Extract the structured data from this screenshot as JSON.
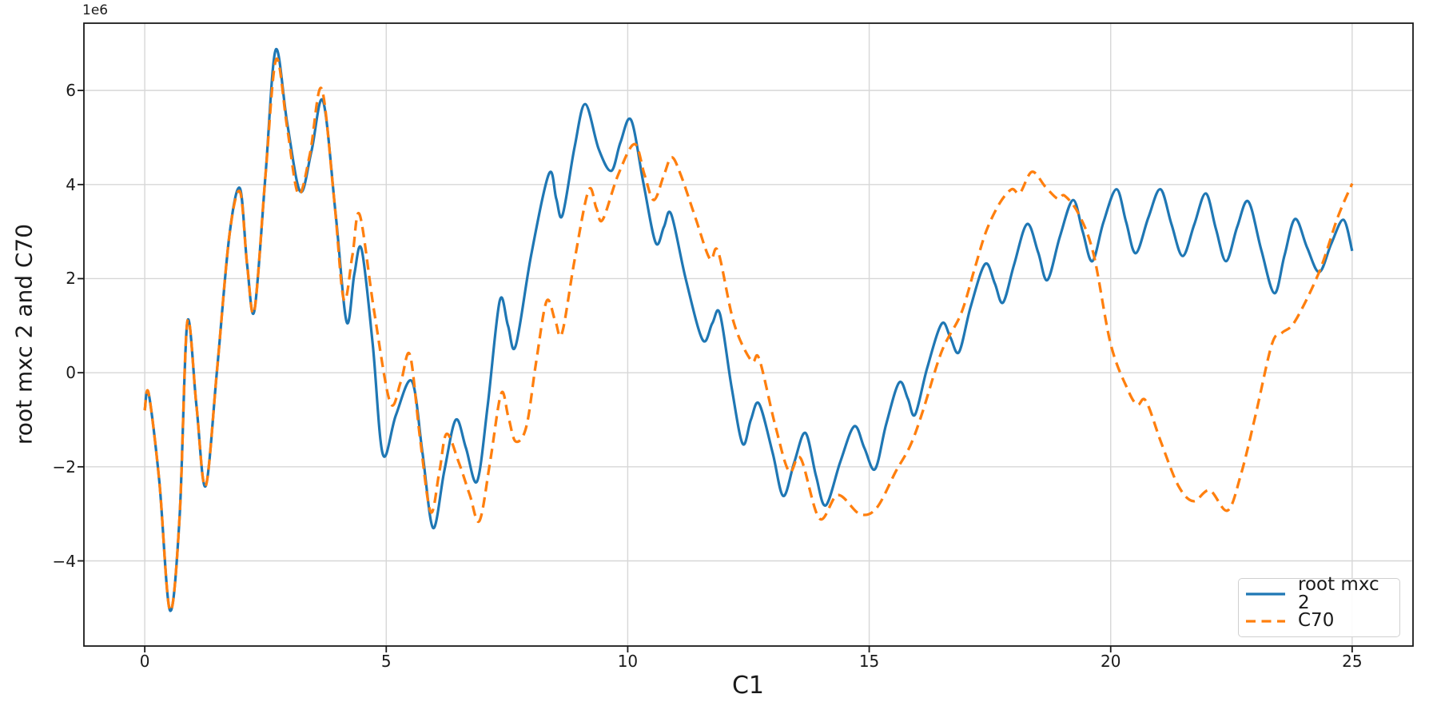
{
  "axes": {
    "offset_text": "1e6",
    "xlabel": "C1",
    "ylabel": "root mxc 2 and C70",
    "x_ticks": [
      {
        "value": 0,
        "label": "0"
      },
      {
        "value": 5,
        "label": "5"
      },
      {
        "value": 10,
        "label": "10"
      },
      {
        "value": 15,
        "label": "15"
      },
      {
        "value": 20,
        "label": "20"
      },
      {
        "value": 25,
        "label": "25"
      }
    ],
    "y_ticks": [
      {
        "value": 6,
        "label": "6"
      },
      {
        "value": 4,
        "label": "4"
      },
      {
        "value": 2,
        "label": "2"
      },
      {
        "value": 0,
        "label": "0"
      },
      {
        "value": -2,
        "label": "−2"
      },
      {
        "value": -4,
        "label": "−4"
      }
    ],
    "xlim": [
      -1.26,
      26.26
    ],
    "ylim": [
      -5.81,
      7.43
    ],
    "grid": true,
    "grid_color": "#d7d7d7",
    "spine_color": "#1a1a1a"
  },
  "legend": {
    "position": "lower right",
    "entries": [
      {
        "label": "root mxc 2",
        "color": "#1f77b4",
        "linestyle": "solid"
      },
      {
        "label": "C70",
        "color": "#ff7f0e",
        "linestyle": "dashed"
      }
    ]
  },
  "chart_data": {
    "type": "line",
    "title": "",
    "xlabel": "C1",
    "ylabel": "root mxc 2 and C70",
    "y_units": "1e6 (axis offset text; y values below are in millions)",
    "xlim": [
      -1.26,
      26.26
    ],
    "ylim": [
      -5.81,
      7.43
    ],
    "grid": true,
    "legend_position": "lower right",
    "series": [
      {
        "name": "root mxc 2",
        "color": "#1f77b4",
        "linestyle": "solid",
        "linewidth": 3.2,
        "x": [
          0,
          0.08,
          0.3,
          0.52,
          0.72,
          0.88,
          1.07,
          1.26,
          1.5,
          1.75,
          1.97,
          2.12,
          2.27,
          2.5,
          2.71,
          2.95,
          3.22,
          3.45,
          3.69,
          3.95,
          4.18,
          4.34,
          4.49,
          4.72,
          4.93,
          5.2,
          5.53,
          5.75,
          5.97,
          6.2,
          6.44,
          6.65,
          6.88,
          7.1,
          7.35,
          7.52,
          7.68,
          8.0,
          8.37,
          8.52,
          8.65,
          8.9,
          9.12,
          9.4,
          9.66,
          9.85,
          10.07,
          10.33,
          10.58,
          10.75,
          10.9,
          11.2,
          11.55,
          11.75,
          11.91,
          12.15,
          12.38,
          12.55,
          12.72,
          13.0,
          13.22,
          13.45,
          13.68,
          13.9,
          14.1,
          14.4,
          14.69,
          14.9,
          15.12,
          15.35,
          15.62,
          15.8,
          15.95,
          16.2,
          16.5,
          16.68,
          16.86,
          17.1,
          17.4,
          17.6,
          17.77,
          18.0,
          18.27,
          18.5,
          18.69,
          18.95,
          19.22,
          19.42,
          19.62,
          19.85,
          20.12,
          20.32,
          20.52,
          20.78,
          21.03,
          21.26,
          21.49,
          21.73,
          21.97,
          22.18,
          22.39,
          22.62,
          22.85,
          23.12,
          23.39,
          23.6,
          23.82,
          24.07,
          24.32,
          24.57,
          24.82,
          25
        ],
        "y": [
          -0.8,
          -0.44,
          -2.3,
          -5.05,
          -3.1,
          1.07,
          -0.7,
          -2.41,
          0.1,
          2.9,
          3.92,
          2.3,
          1.32,
          4.2,
          6.86,
          5.3,
          3.85,
          4.7,
          5.78,
          3.4,
          1.08,
          2.1,
          2.62,
          0.6,
          -1.74,
          -0.9,
          -0.18,
          -1.7,
          -3.3,
          -2.1,
          -1.0,
          -1.6,
          -2.31,
          -0.7,
          1.53,
          1.0,
          0.57,
          2.5,
          4.23,
          3.7,
          3.35,
          4.8,
          5.71,
          4.75,
          4.29,
          4.9,
          5.37,
          4.0,
          2.76,
          3.1,
          3.37,
          2.0,
          0.7,
          1.05,
          1.25,
          -0.3,
          -1.51,
          -1.0,
          -0.66,
          -1.7,
          -2.62,
          -1.9,
          -1.28,
          -2.2,
          -2.82,
          -1.9,
          -1.14,
          -1.6,
          -2.05,
          -1.1,
          -0.21,
          -0.55,
          -0.89,
          0.1,
          1.04,
          0.75,
          0.44,
          1.4,
          2.31,
          1.9,
          1.49,
          2.3,
          3.16,
          2.55,
          1.97,
          2.9,
          3.67,
          3.0,
          2.37,
          3.2,
          3.9,
          3.2,
          2.54,
          3.3,
          3.9,
          3.15,
          2.48,
          3.15,
          3.81,
          3.05,
          2.37,
          3.1,
          3.64,
          2.6,
          1.69,
          2.5,
          3.27,
          2.65,
          2.14,
          2.75,
          3.25,
          2.59
        ]
      },
      {
        "name": "C70",
        "color": "#ff7f0e",
        "linestyle": "dashed",
        "linewidth": 3.3,
        "x": [
          0,
          0.08,
          0.3,
          0.52,
          0.72,
          0.88,
          1.07,
          1.26,
          1.5,
          1.75,
          1.97,
          2.12,
          2.27,
          2.5,
          2.72,
          2.95,
          3.18,
          3.42,
          3.66,
          3.92,
          4.12,
          4.3,
          4.45,
          4.75,
          5.08,
          5.3,
          5.49,
          5.7,
          5.92,
          6.1,
          6.25,
          6.5,
          6.73,
          6.93,
          7.15,
          7.38,
          7.53,
          7.68,
          7.9,
          8.1,
          8.32,
          8.5,
          8.64,
          8.9,
          9.19,
          9.35,
          9.48,
          9.8,
          10.14,
          10.35,
          10.54,
          10.75,
          10.91,
          11.1,
          11.4,
          11.7,
          11.87,
          12.2,
          12.56,
          12.72,
          13.05,
          13.34,
          13.58,
          13.97,
          14.35,
          14.8,
          15.15,
          15.55,
          15.85,
          16.1,
          16.5,
          16.9,
          17.18,
          17.42,
          17.7,
          17.95,
          18.12,
          18.37,
          18.65,
          18.9,
          19.05,
          19.35,
          19.65,
          20.0,
          20.35,
          20.55,
          20.73,
          21.05,
          21.4,
          21.71,
          22.05,
          22.42,
          22.7,
          23.0,
          23.34,
          23.55,
          23.82,
          24.32,
          24.7,
          25
        ],
        "y": [
          -0.8,
          -0.44,
          -2.3,
          -5.05,
          -3.1,
          1.07,
          -0.7,
          -2.41,
          0.1,
          2.9,
          3.85,
          2.3,
          1.32,
          4.2,
          6.66,
          5.2,
          3.8,
          4.65,
          6.04,
          3.7,
          1.56,
          2.5,
          3.36,
          1.3,
          -0.63,
          -0.2,
          0.38,
          -1.4,
          -2.96,
          -2.1,
          -1.3,
          -1.9,
          -2.6,
          -3.15,
          -1.9,
          -0.44,
          -0.95,
          -1.46,
          -1.15,
          0.2,
          1.52,
          1.1,
          0.84,
          2.4,
          3.88,
          3.5,
          3.25,
          4.2,
          4.86,
          4.2,
          3.67,
          4.2,
          4.58,
          4.2,
          3.3,
          2.42,
          2.58,
          1.05,
          0.25,
          0.3,
          -1.1,
          -2.1,
          -1.82,
          -3.1,
          -2.6,
          -3.0,
          -2.88,
          -2.1,
          -1.55,
          -0.85,
          0.45,
          1.25,
          2.2,
          3.0,
          3.6,
          3.9,
          3.82,
          4.27,
          3.95,
          3.7,
          3.76,
          3.35,
          2.5,
          0.61,
          -0.35,
          -0.68,
          -0.6,
          -1.5,
          -2.4,
          -2.73,
          -2.5,
          -2.93,
          -2.15,
          -0.9,
          0.61,
          0.85,
          1.1,
          2.15,
          3.3,
          4.02
        ]
      }
    ]
  }
}
